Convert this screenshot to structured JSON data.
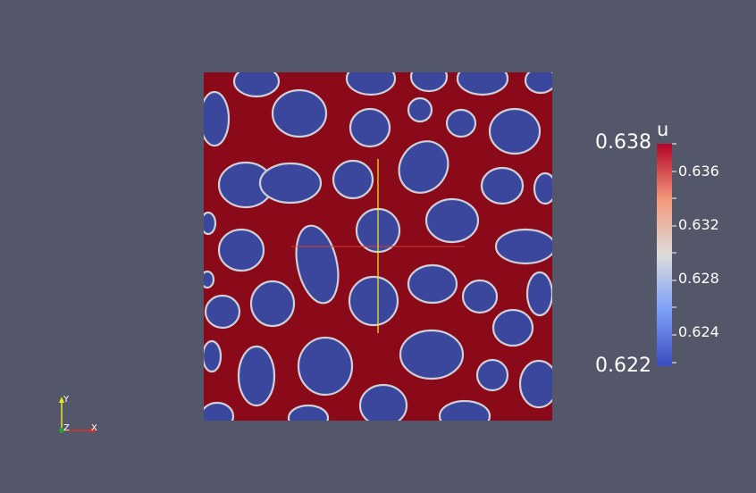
{
  "colorbar": {
    "title": "u",
    "max_label": "0.638",
    "min_label": "0.622",
    "tick_labels": [
      "0.636",
      "0.632",
      "0.628",
      "0.624"
    ],
    "colors": {
      "high": "#b40426",
      "mid": "#dddcdb",
      "low": "#3b4cc0"
    }
  },
  "field": {
    "background_color": "#8b0a1a",
    "blob_color": "#3a479c",
    "blob_edge_color": "#cfcfd8",
    "crosshair_horizontal_color": "#e23a2e",
    "crosshair_vertical_color": "#e6e61a"
  },
  "orientation_axes": {
    "y_label": "Y",
    "z_label": "Z",
    "x_label": "X"
  },
  "viewport_background": "#535769"
}
